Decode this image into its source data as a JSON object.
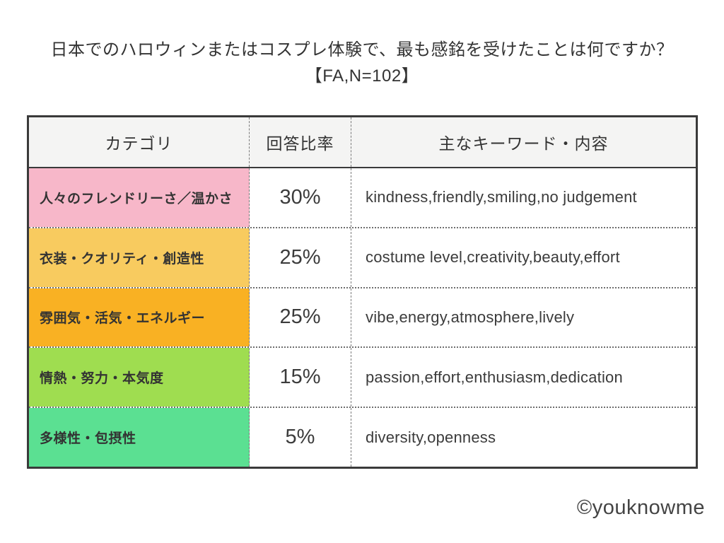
{
  "title": {
    "line1": "日本でのハロウィンまたはコスプレ体験で、最も感銘を受けたことは何ですか？",
    "line2": "【FA,N=102】"
  },
  "table": {
    "headers": {
      "category": "カテゴリ",
      "rate": "回答比率",
      "keywords": "主なキーワード・内容"
    },
    "rows": [
      {
        "category": "人々のフレンドリーさ／温かさ",
        "rate": "30%",
        "keywords": "kindness,friendly,smiling,no judgement",
        "color": "#F7B7C9"
      },
      {
        "category": "衣装・クオリティ・創造性",
        "rate": "25%",
        "keywords": "costume level,creativity,beauty,effort",
        "color": "#F8CB5F"
      },
      {
        "category": "雰囲気・活気・エネルギー",
        "rate": "25%",
        "keywords": "vibe,energy,atmosphere,lively",
        "color": "#F9B123"
      },
      {
        "category": "情熱・努力・本気度",
        "rate": "15%",
        "keywords": "passion,effort,enthusiasm,dedication",
        "color": "#9FDD50"
      },
      {
        "category": "多様性・包摂性",
        "rate": "5%",
        "keywords": "diversity,openness",
        "color": "#5BE092"
      }
    ]
  },
  "footer": {
    "credit": "©youknowme"
  },
  "colors": {
    "outer_border": "#3a3a3a",
    "header_bg": "#f4f4f3",
    "text": "#333333",
    "separator": "#6f6f6f"
  },
  "chart_data": {
    "type": "table",
    "title": "日本でのハロウィンまたはコスプレ体験で、最も感銘を受けたことは何ですか？【FA,N=102】",
    "columns": [
      "カテゴリ",
      "回答比率",
      "主なキーワード・内容"
    ],
    "categories": [
      "人々のフレンドリーさ／温かさ",
      "衣装・クオリティ・創造性",
      "雰囲気・活気・エネルギー",
      "情熱・努力・本気度",
      "多様性・包摂性"
    ],
    "values": [
      30,
      25,
      25,
      15,
      5
    ],
    "value_unit": "%",
    "keywords": [
      "kindness,friendly,smiling,no judgement",
      "costume level,creativity,beauty,effort",
      "vibe,energy,atmosphere,lively",
      "passion,effort,enthusiasm,dedication",
      "diversity,openness"
    ],
    "row_colors": [
      "#F7B7C9",
      "#F8CB5F",
      "#F9B123",
      "#9FDD50",
      "#5BE092"
    ],
    "sample_note": "FA, N=102"
  }
}
